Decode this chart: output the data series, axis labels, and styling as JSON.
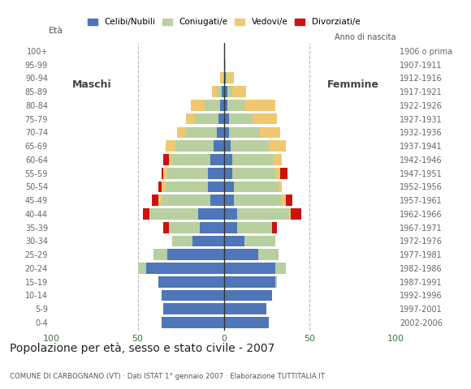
{
  "age_groups": [
    "0-4",
    "5-9",
    "10-14",
    "15-19",
    "20-24",
    "25-29",
    "30-34",
    "35-39",
    "40-44",
    "45-49",
    "50-54",
    "55-59",
    "60-64",
    "65-69",
    "70-74",
    "75-79",
    "80-84",
    "85-89",
    "90-94",
    "95-99",
    "100+"
  ],
  "birth_years": [
    "2002-2006",
    "1997-2001",
    "1992-1996",
    "1987-1991",
    "1982-1986",
    "1977-1981",
    "1972-1976",
    "1967-1971",
    "1962-1966",
    "1957-1961",
    "1952-1956",
    "1947-1951",
    "1942-1946",
    "1937-1941",
    "1932-1936",
    "1927-1931",
    "1922-1926",
    "1917-1921",
    "1912-1916",
    "1907-1911",
    "1906 o prima"
  ],
  "colors": {
    "celibi": "#4e76b8",
    "coniugati": "#b8cfa0",
    "vedovi": "#f0c870",
    "divorziati": "#cc1111"
  },
  "maschi": {
    "celibi": [
      36,
      35,
      36,
      38,
      45,
      33,
      18,
      14,
      15,
      8,
      9,
      9,
      8,
      6,
      4,
      3,
      2,
      1,
      0,
      0,
      0
    ],
    "coniugati": [
      0,
      0,
      0,
      0,
      5,
      8,
      12,
      18,
      28,
      28,
      25,
      24,
      22,
      22,
      18,
      14,
      9,
      3,
      0,
      0,
      0
    ],
    "vedovi": [
      0,
      0,
      0,
      0,
      0,
      0,
      0,
      0,
      0,
      2,
      2,
      2,
      2,
      6,
      5,
      5,
      8,
      3,
      2,
      0,
      0
    ],
    "divorziati": [
      0,
      0,
      0,
      0,
      0,
      0,
      0,
      3,
      4,
      4,
      2,
      1,
      3,
      0,
      0,
      0,
      0,
      0,
      0,
      0,
      0
    ]
  },
  "femmine": {
    "celibi": [
      26,
      25,
      28,
      30,
      30,
      20,
      12,
      8,
      8,
      6,
      6,
      5,
      5,
      4,
      3,
      3,
      2,
      2,
      1,
      0,
      0
    ],
    "coniugati": [
      0,
      0,
      0,
      1,
      6,
      12,
      18,
      20,
      30,
      28,
      26,
      25,
      24,
      22,
      18,
      14,
      10,
      3,
      1,
      0,
      0
    ],
    "vedovi": [
      0,
      0,
      0,
      0,
      0,
      0,
      0,
      0,
      1,
      2,
      2,
      3,
      5,
      10,
      12,
      14,
      18,
      8,
      4,
      1,
      0
    ],
    "divorziati": [
      0,
      0,
      0,
      0,
      0,
      0,
      0,
      3,
      6,
      4,
      0,
      4,
      0,
      0,
      0,
      0,
      0,
      0,
      0,
      0,
      0
    ]
  },
  "xlim": 100,
  "title": "Popolazione per età, sesso e stato civile - 2007",
  "subtitle": "COMUNE DI CARBOGNANO (VT) · Dati ISTAT 1° gennaio 2007 · Elaborazione TUTTITALIA.IT",
  "ylabel_left": "Età",
  "ylabel_right": "Anno di nascita",
  "label_maschi": "Maschi",
  "label_femmine": "Femmine",
  "legend_labels": [
    "Celibi/Nubili",
    "Coniugati/e",
    "Vedovi/e",
    "Divorziati/e"
  ],
  "bg_color": "#ffffff",
  "grid_color": "#bbbbbb",
  "tick_color": "#3a7a3a"
}
